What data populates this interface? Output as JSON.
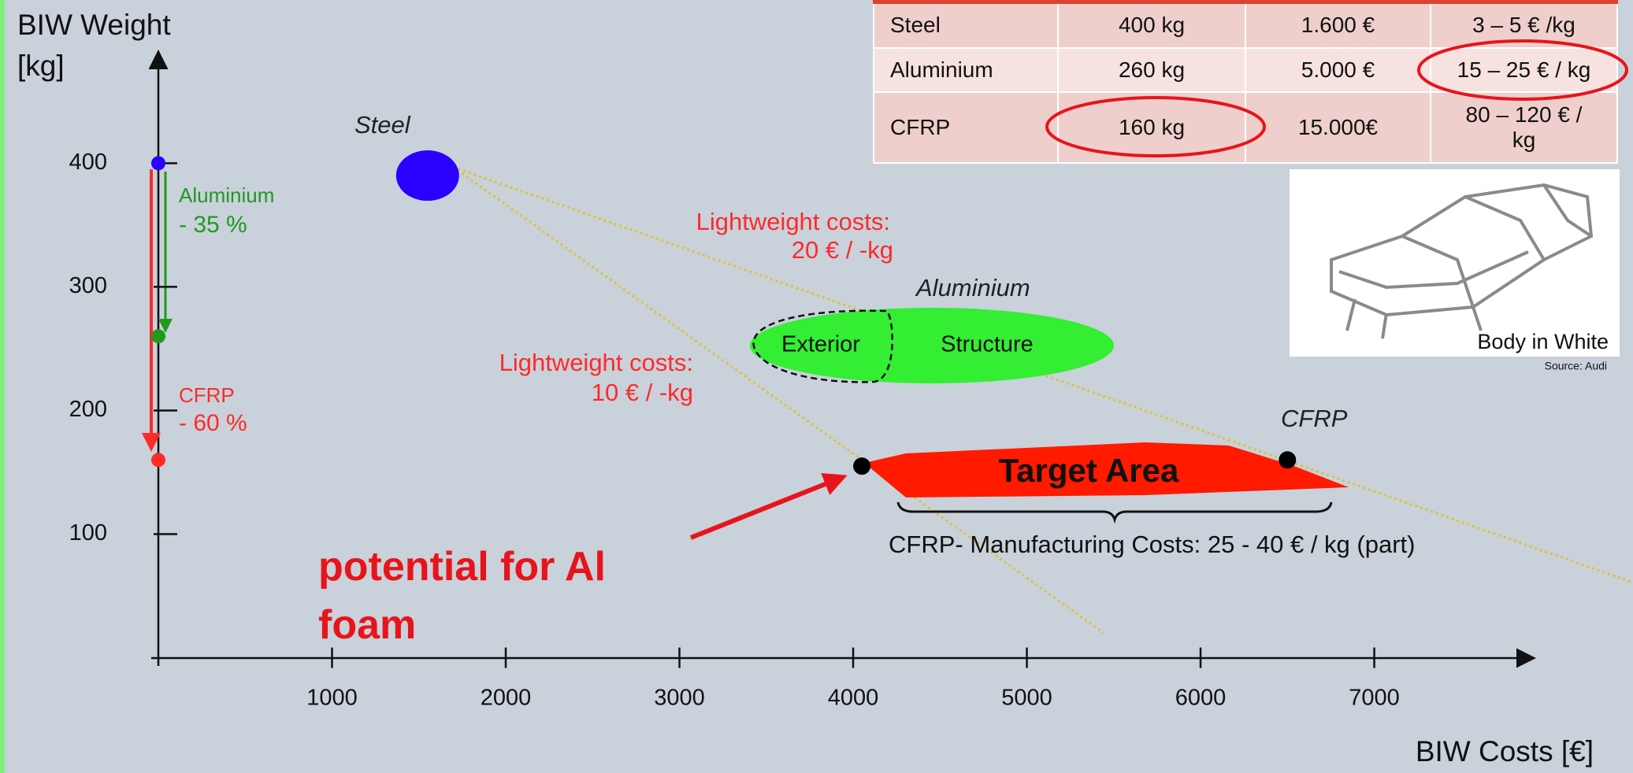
{
  "chart_data": {
    "type": "scatter",
    "ylabel": "BIW Weight [kg]",
    "xlabel": "BIW Costs [€]",
    "xlim": [
      0,
      7900
    ],
    "ylim": [
      0,
      490
    ],
    "xticks": [
      1000,
      2000,
      3000,
      4000,
      5000,
      6000,
      7000
    ],
    "yticks": [
      100,
      200,
      300,
      400
    ],
    "series": [
      {
        "name": "Steel",
        "color": "#2a00ff",
        "x": [
          1550
        ],
        "values": [
          390
        ]
      },
      {
        "name": "Target Area",
        "color": "#000000",
        "x": [
          4050
        ],
        "values": [
          155
        ]
      },
      {
        "name": "CFRP",
        "color": "#000000",
        "x": [
          6500
        ],
        "values": [
          160
        ]
      }
    ],
    "weight_markers": {
      "values": [
        400,
        260,
        160
      ],
      "colors": [
        "#2a00ff",
        "#1f9a1f",
        "#ff2a2a"
      ]
    },
    "annotations": {
      "aluminium_label": "Aluminium",
      "aluminium_change": "- 35 %",
      "cfrp_label": "CFRP",
      "cfrp_change": "- 60 %",
      "aluminium_region": "Aluminium",
      "exterior": "Exterior",
      "structure": "Structure",
      "lightweight_costs_1": "Lightweight costs:",
      "lightweight_value_1": "20 € / -kg",
      "lightweight_costs_2": "Lightweight costs:",
      "lightweight_value_2": "10 € / -kg",
      "cfrp_manufacturing": "CFRP- Manufacturing Costs: 25 - 40 € / kg (part)",
      "potential": "potential for Al foam"
    }
  },
  "table": {
    "rows": [
      [
        "Steel",
        "400 kg",
        "1.600 €",
        "3 – 5 € /kg"
      ],
      [
        "Aluminium",
        "260 kg",
        "5.000 €",
        "15 – 25 € / kg"
      ],
      [
        "CFRP",
        "160 kg",
        "15.000€",
        "80 – 120 € / kg"
      ]
    ]
  },
  "image": {
    "caption": "Body in White",
    "source": "Source: Audi"
  }
}
